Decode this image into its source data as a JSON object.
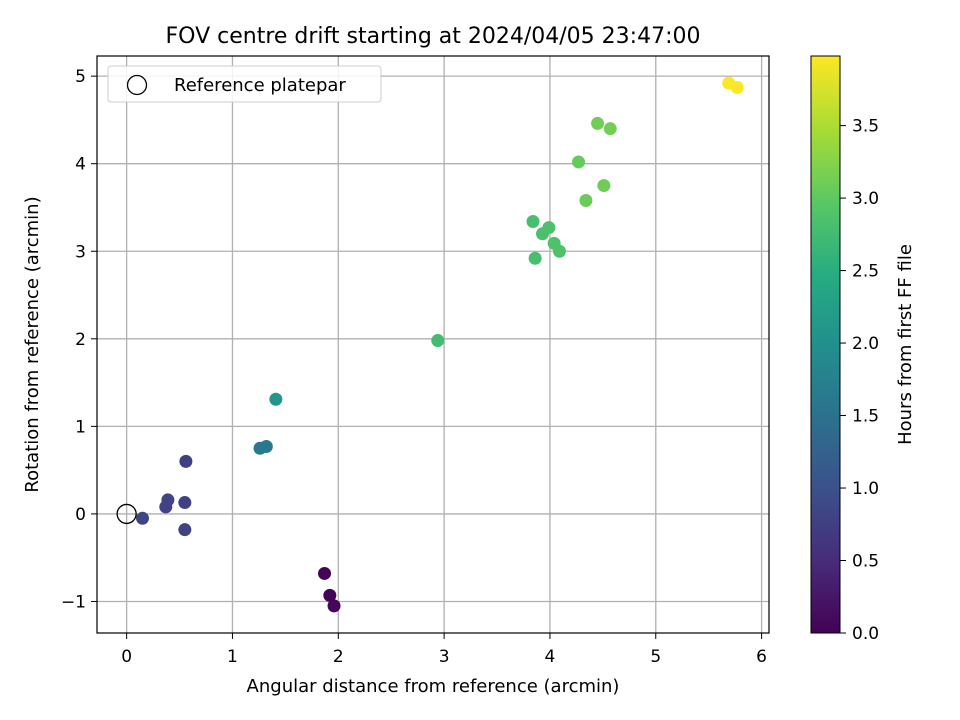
{
  "chart_data": {
    "type": "scatter",
    "title": "FOV centre drift starting at 2024/04/05 23:47:00",
    "xlabel": "Angular distance from reference (arcmin)",
    "ylabel": "Rotation from reference (arcmin)",
    "xlim": [
      -0.28,
      6.07
    ],
    "ylim": [
      -1.36,
      5.23
    ],
    "xticks": [
      0,
      1,
      2,
      3,
      4,
      5,
      6
    ],
    "yticks": [
      -1,
      0,
      1,
      2,
      3,
      4,
      5
    ],
    "grid": true,
    "colormap": "viridis",
    "colorbar": {
      "label": "Hours from first FF file",
      "range": [
        0.0,
        3.98
      ],
      "ticks": [
        0.0,
        0.5,
        1.0,
        1.5,
        2.0,
        2.5,
        3.0,
        3.5
      ],
      "tick_labels": [
        "0.0",
        "0.5",
        "1.0",
        "1.5",
        "2.0",
        "2.5",
        "3.0",
        "3.5"
      ]
    },
    "legend": {
      "placement": "top-left",
      "entries": [
        {
          "label": "Reference platepar",
          "marker": "open-circle"
        }
      ]
    },
    "reference_point": {
      "x": 0,
      "y": 0
    },
    "series": [
      {
        "points": [
          {
            "x": 1.87,
            "y": -0.68,
            "hours": 0.02
          },
          {
            "x": 1.92,
            "y": -0.93,
            "hours": 0.05
          },
          {
            "x": 1.96,
            "y": -1.05,
            "hours": 0.08
          },
          {
            "x": 0.15,
            "y": -0.05,
            "hours": 0.85
          },
          {
            "x": 0.37,
            "y": 0.08,
            "hours": 0.8
          },
          {
            "x": 0.39,
            "y": 0.16,
            "hours": 0.82
          },
          {
            "x": 0.55,
            "y": 0.13,
            "hours": 0.78
          },
          {
            "x": 0.55,
            "y": -0.18,
            "hours": 0.8
          },
          {
            "x": 0.56,
            "y": 0.6,
            "hours": 0.75
          },
          {
            "x": 1.26,
            "y": 0.75,
            "hours": 1.6
          },
          {
            "x": 1.32,
            "y": 0.77,
            "hours": 1.62
          },
          {
            "x": 1.41,
            "y": 1.31,
            "hours": 2.1
          },
          {
            "x": 2.94,
            "y": 1.98,
            "hours": 2.75
          },
          {
            "x": 3.84,
            "y": 3.34,
            "hours": 2.8
          },
          {
            "x": 3.86,
            "y": 2.92,
            "hours": 2.8
          },
          {
            "x": 3.93,
            "y": 3.2,
            "hours": 2.82
          },
          {
            "x": 3.99,
            "y": 3.27,
            "hours": 2.84
          },
          {
            "x": 4.04,
            "y": 3.09,
            "hours": 2.85
          },
          {
            "x": 4.09,
            "y": 3.0,
            "hours": 2.86
          },
          {
            "x": 4.27,
            "y": 4.02,
            "hours": 3.05
          },
          {
            "x": 4.34,
            "y": 3.58,
            "hours": 3.08
          },
          {
            "x": 4.45,
            "y": 4.46,
            "hours": 3.12
          },
          {
            "x": 4.51,
            "y": 3.75,
            "hours": 3.1
          },
          {
            "x": 4.57,
            "y": 4.4,
            "hours": 3.14
          },
          {
            "x": 5.69,
            "y": 4.92,
            "hours": 3.96
          },
          {
            "x": 5.77,
            "y": 4.87,
            "hours": 3.98
          }
        ]
      }
    ]
  }
}
